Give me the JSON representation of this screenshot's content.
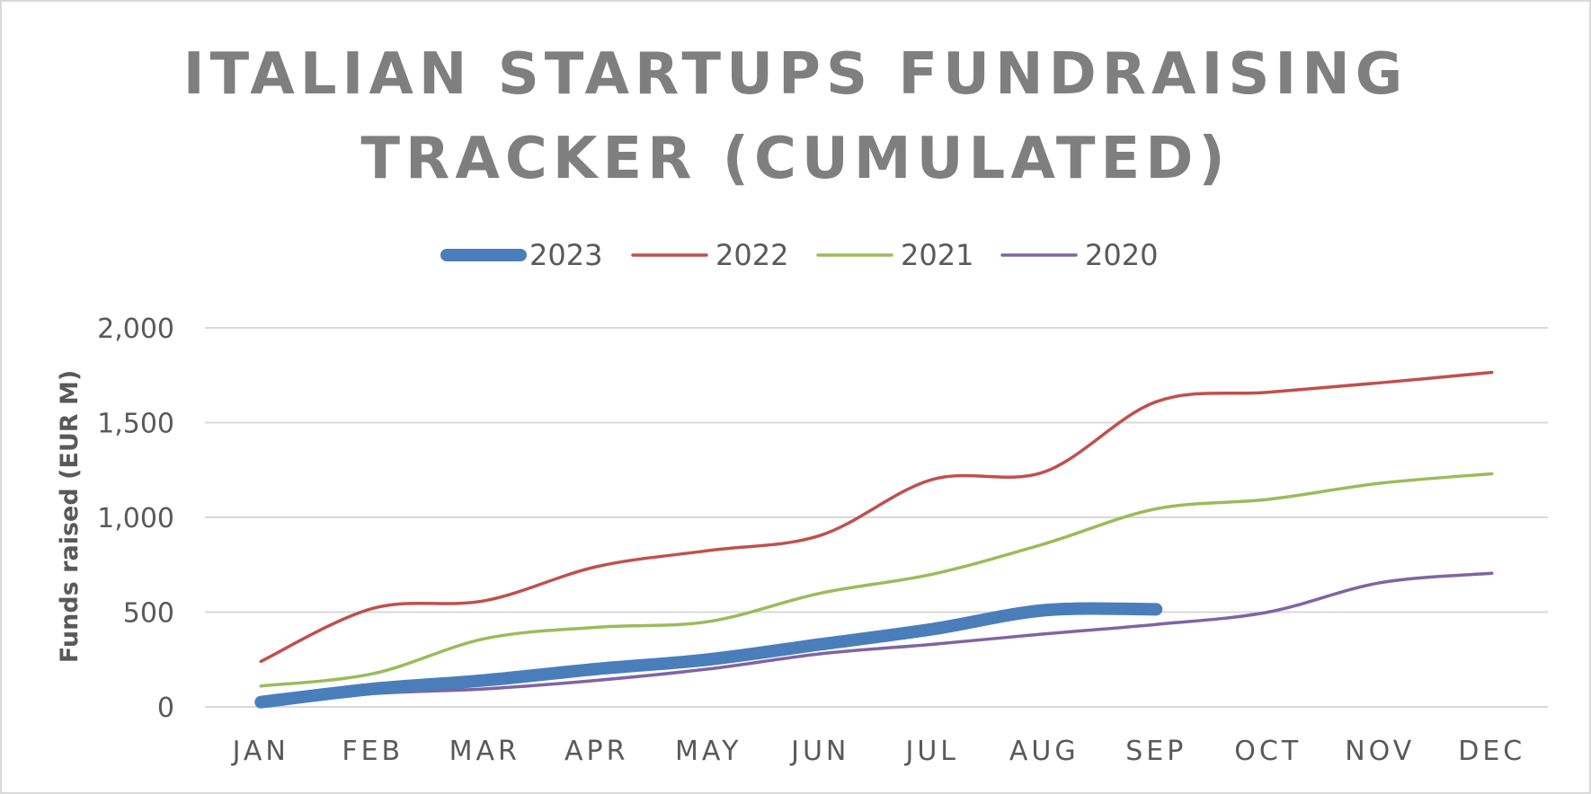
{
  "chart_data": {
    "type": "line",
    "title_lines": [
      "ITALIAN STARTUPS FUNDRAISING",
      "TRACKER (CUMULATED)"
    ],
    "ylabel": "Funds raised (EUR M)",
    "xlabel": "",
    "categories": [
      "JAN",
      "FEB",
      "MAR",
      "APR",
      "MAY",
      "JUN",
      "JUL",
      "AUG",
      "SEP",
      "OCT",
      "NOV",
      "DEC"
    ],
    "ylim": [
      0,
      2000
    ],
    "yticks": [
      0,
      500,
      1000,
      1500,
      2000
    ],
    "ytick_labels": [
      "0",
      "500",
      "1,000",
      "1,500",
      "2,000"
    ],
    "grid": true,
    "legend_position": "top",
    "series": [
      {
        "name": "2023",
        "color": "#4a7ebb",
        "values": [
          25,
          95,
          140,
          200,
          250,
          330,
          410,
          510,
          515,
          null,
          null,
          null
        ]
      },
      {
        "name": "2022",
        "color": "#c0504d",
        "values": [
          240,
          520,
          560,
          740,
          825,
          905,
          1200,
          1240,
          1610,
          1660,
          1710,
          1765
        ]
      },
      {
        "name": "2021",
        "color": "#9bbb59",
        "values": [
          110,
          175,
          360,
          420,
          450,
          600,
          700,
          860,
          1045,
          1095,
          1180,
          1230
        ]
      },
      {
        "name": "2020",
        "color": "#8064a2",
        "values": [
          10,
          70,
          95,
          140,
          200,
          280,
          330,
          385,
          435,
          500,
          655,
          705
        ]
      }
    ]
  }
}
